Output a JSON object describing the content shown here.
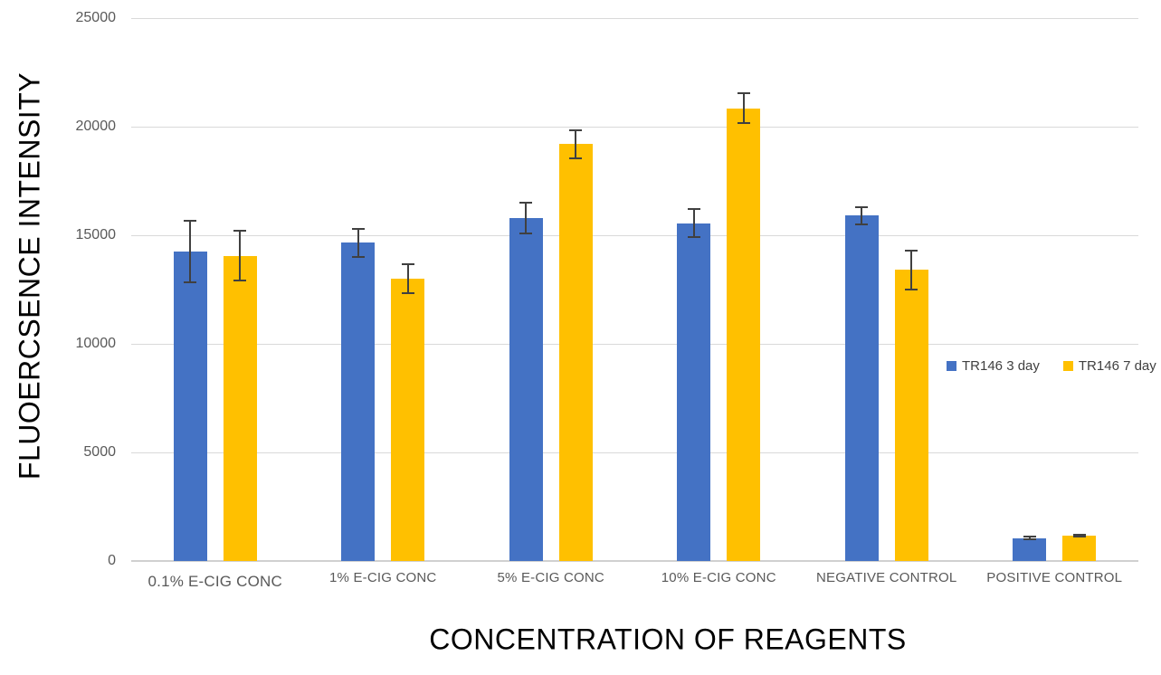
{
  "chart_data": {
    "type": "bar",
    "title": "",
    "xlabel": "CONCENTRATION OF REAGENTS",
    "ylabel": "FLUOERCSENCE INTENSITY",
    "categories": [
      "0.1% E-CIG CONC",
      "1% E-CIG CONC",
      "5% E-CIG CONC",
      "10% E-CIG CONC",
      "NEGATIVE CONTROL",
      "POSITIVE CONTROL"
    ],
    "series": [
      {
        "name": "TR146 3 day",
        "color": "#4472C4",
        "values": [
          14250,
          14650,
          15800,
          15550,
          15900,
          1050
        ],
        "errors": [
          1400,
          650,
          700,
          650,
          400,
          60
        ]
      },
      {
        "name": "TR146 7 day",
        "color": "#FFC000",
        "values": [
          14050,
          13000,
          19200,
          20850,
          13400,
          1170
        ],
        "errors": [
          1150,
          650,
          650,
          675,
          900,
          50
        ]
      }
    ],
    "ylim": [
      0,
      25000
    ],
    "yticks": [
      0,
      5000,
      10000,
      15000,
      20000,
      25000
    ],
    "ytick_labels": [
      "0",
      "5000",
      "10000",
      "15000",
      "20000",
      "25000"
    ],
    "grid": "horizontal",
    "legend_position": "right-middle"
  },
  "colors": {
    "background": "#FFFFFF",
    "gridline": "#D9D9D9",
    "axis_line": "#D0D0D0",
    "tick_text": "#595959",
    "error_bar": "#404040",
    "title_text": "#000000",
    "series_blue": "#4472C4",
    "series_yellow": "#FFC000"
  }
}
